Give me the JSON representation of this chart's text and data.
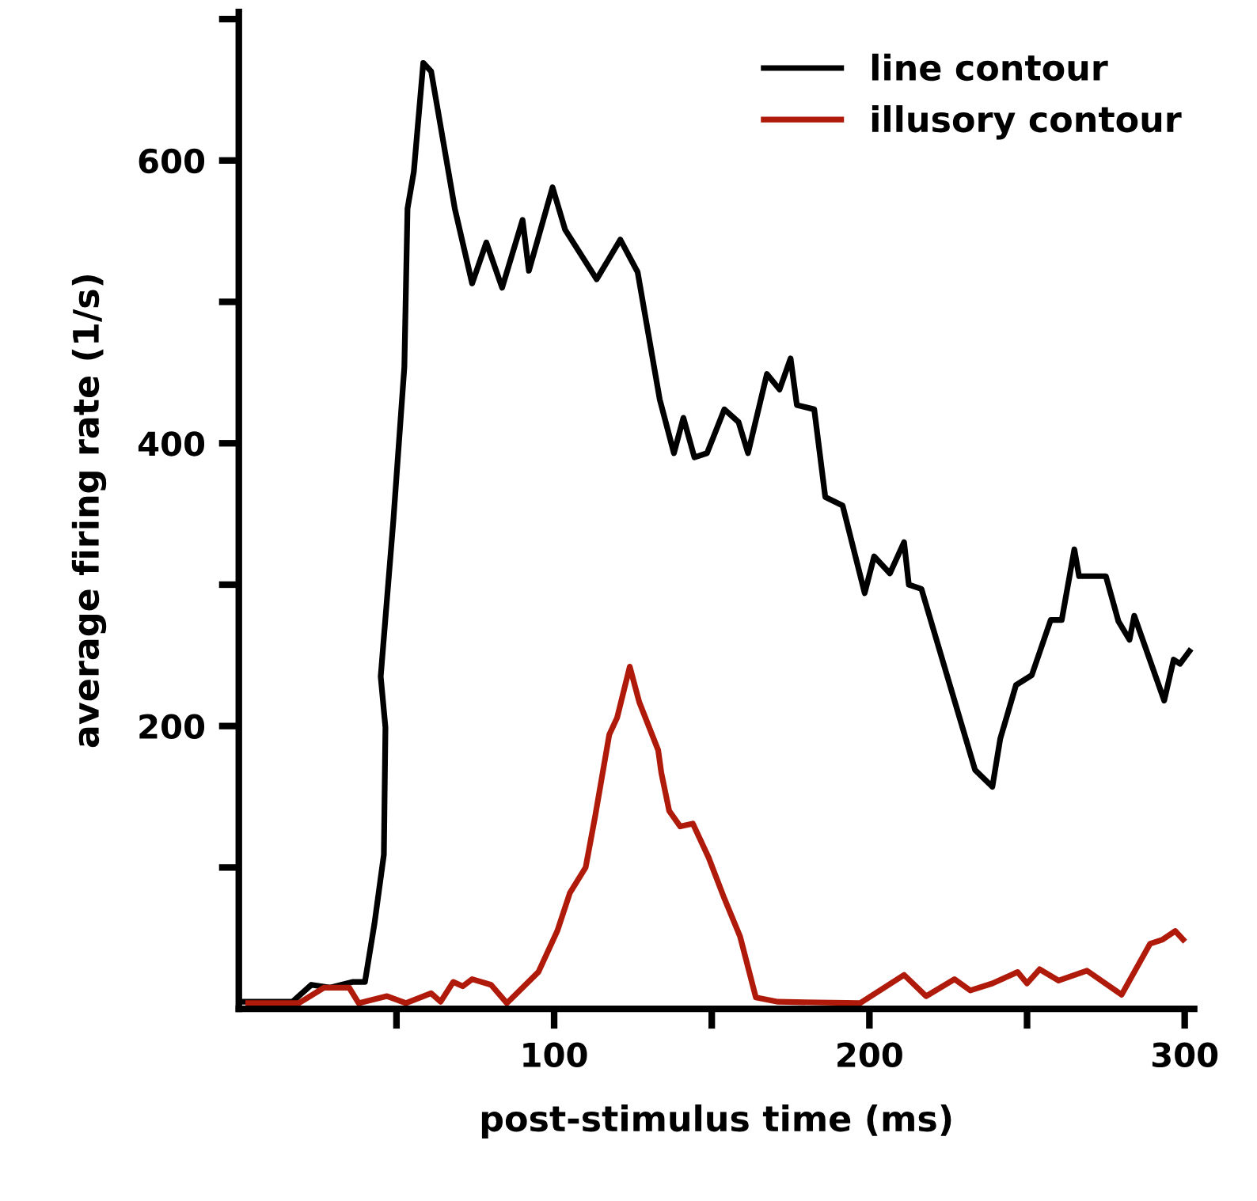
{
  "chart_data": {
    "type": "line",
    "xlabel": "post-stimulus time (ms)",
    "ylabel": "average firing rate (1/s)",
    "xlim": [
      0,
      303
    ],
    "ylim": [
      0,
      705
    ],
    "xticks": [
      {
        "value": 50,
        "label": null
      },
      100,
      {
        "value": 150,
        "label": null
      },
      200,
      {
        "value": 250,
        "label": null
      },
      300
    ],
    "yticks": [
      {
        "value": 100,
        "label": null
      },
      200,
      {
        "value": 300,
        "label": null
      },
      400,
      {
        "value": 500,
        "label": null
      },
      600,
      {
        "value": 700,
        "label": null
      }
    ],
    "legend": "top right",
    "grid": false,
    "marker": "none",
    "line_style": "solid",
    "series": [
      {
        "name": "line contour",
        "color": "#000000",
        "x": [
          1,
          17,
          23,
          29,
          36,
          40,
          43,
          46,
          46.5,
          45,
          49,
          52.5,
          53.5,
          55.5,
          58.5,
          61,
          68.5,
          74,
          78.5,
          83.5,
          90,
          92,
          99.5,
          103.5,
          113.5,
          121,
          126.5,
          133.5,
          138,
          141,
          144.5,
          148.5,
          154,
          158.5,
          161.5,
          167.5,
          171.5,
          175,
          177,
          182.5,
          186,
          191.5,
          198.5,
          201.5,
          206.5,
          211,
          212.5,
          216.5,
          225,
          233.5,
          239,
          241.5,
          246.5,
          251.5,
          257.5,
          261,
          265,
          266.5,
          275,
          279,
          282.5,
          284,
          293.5,
          296.5,
          298.5,
          301.5
        ],
        "values": [
          5,
          5,
          17,
          15,
          19,
          19,
          60,
          109,
          199,
          235,
          345,
          454,
          566,
          592,
          669,
          663,
          566,
          513,
          542,
          510,
          558,
          522,
          581,
          551,
          516,
          544,
          521,
          431,
          393,
          418,
          390,
          393,
          424,
          415,
          393,
          449,
          438,
          460,
          427,
          424,
          362,
          356,
          294,
          320,
          308,
          330,
          300,
          297,
          233,
          169,
          157,
          191,
          229,
          236,
          275,
          275,
          325,
          306,
          306,
          274,
          261,
          278,
          218,
          247,
          244,
          253
        ]
      },
      {
        "name": "illusory contour",
        "color": "#b01a0a",
        "x": [
          3,
          19,
          27,
          35,
          38,
          47,
          53,
          61,
          64,
          68,
          71,
          74,
          80,
          85,
          95,
          101,
          105,
          110,
          113,
          117.5,
          120,
          124,
          127,
          133,
          134,
          136.5,
          140,
          144,
          149,
          154,
          159,
          164,
          171,
          197,
          211,
          218,
          227,
          232,
          239,
          247,
          250,
          254,
          260,
          269,
          280,
          289,
          293,
          297,
          299.5
        ],
        "values": [
          4,
          4,
          15,
          15,
          4,
          9,
          4,
          11,
          5,
          19,
          16,
          21,
          17,
          4,
          26,
          55,
          82,
          100,
          136,
          194,
          206,
          242,
          217,
          183,
          167,
          140,
          129,
          131,
          107,
          78,
          51,
          8,
          5,
          4,
          24,
          9,
          21,
          13,
          18,
          26,
          18,
          28,
          20,
          27,
          10,
          46,
          49,
          55,
          49
        ]
      }
    ]
  }
}
